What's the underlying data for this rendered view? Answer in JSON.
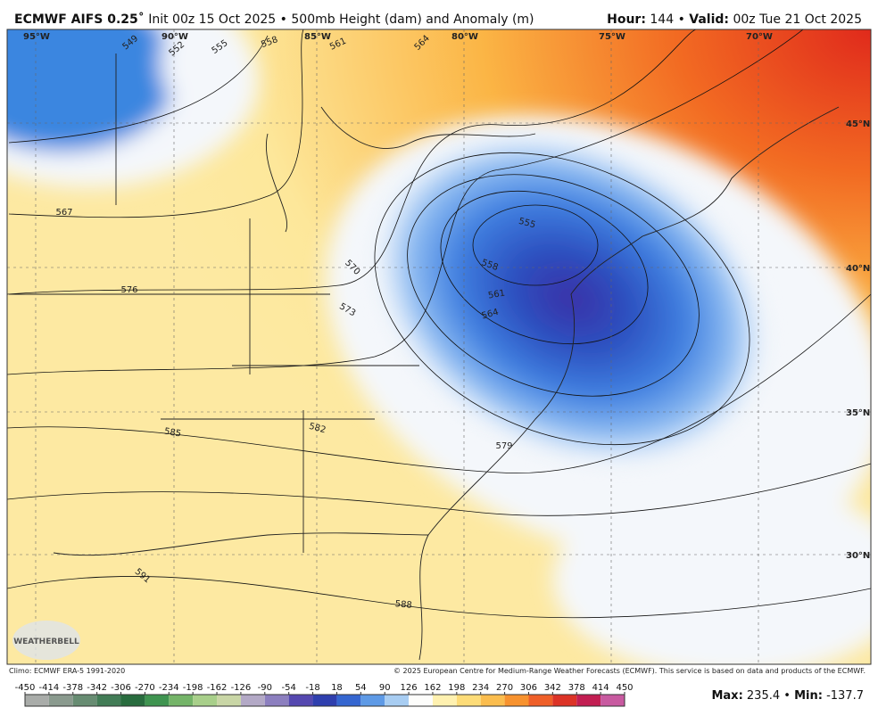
{
  "header": {
    "model": "ECMWF AIFS 0.25˚",
    "init": "Init 00z 15 Oct 2025",
    "separator": "•",
    "field": "500mb Height (dam) and Anomaly (m)",
    "hour_label": "Hour:",
    "hour": "144",
    "valid_label": "Valid:",
    "valid": "00z Tue 21 Oct 2025"
  },
  "map": {
    "longitude_labels": [
      "95°W",
      "90°W",
      "85°W",
      "80°W",
      "75°W",
      "70°W"
    ],
    "latitude_labels": [
      "45°N",
      "40°N",
      "35°N",
      "30°N"
    ],
    "contour_labels": [
      "549",
      "552",
      "555",
      "558",
      "561",
      "564",
      "567",
      "570",
      "573",
      "576",
      "582",
      "585",
      "588",
      "591",
      "579",
      "555",
      "558",
      "561",
      "564"
    ],
    "logo": "WEATHERBELL"
  },
  "footer": {
    "climo": "Climo: ECMWF ERA-5 1991-2020",
    "copyright": "© 2025 European Centre for Medium-Range Weather Forecasts (ECMWF). This service is based on data and products of the ECMWF.",
    "max_label": "Max:",
    "max": "235.4",
    "min_label": "Min:",
    "min": "-137.7"
  },
  "colorbar": {
    "ticks": [
      -450,
      -414,
      -378,
      -342,
      -306,
      -270,
      -234,
      -198,
      -162,
      -126,
      -90,
      -54,
      -18,
      18,
      54,
      90,
      126,
      162,
      198,
      234,
      270,
      306,
      342,
      378,
      414,
      450
    ],
    "colors": [
      "#a9aca9",
      "#8a9a8e",
      "#678c72",
      "#427c56",
      "#286c3e",
      "#3f9450",
      "#74b468",
      "#a8cf8a",
      "#c9d6a6",
      "#b3a9c6",
      "#8c7fbf",
      "#5548b0",
      "#2f3fae",
      "#3566d0",
      "#5e9ae6",
      "#a8cdf2",
      "#fdfdfb",
      "#fff1b0",
      "#fddc78",
      "#fbbd4e",
      "#f7922e",
      "#ef5f28",
      "#dc3326",
      "#c21e52",
      "#c85aa0"
    ]
  }
}
